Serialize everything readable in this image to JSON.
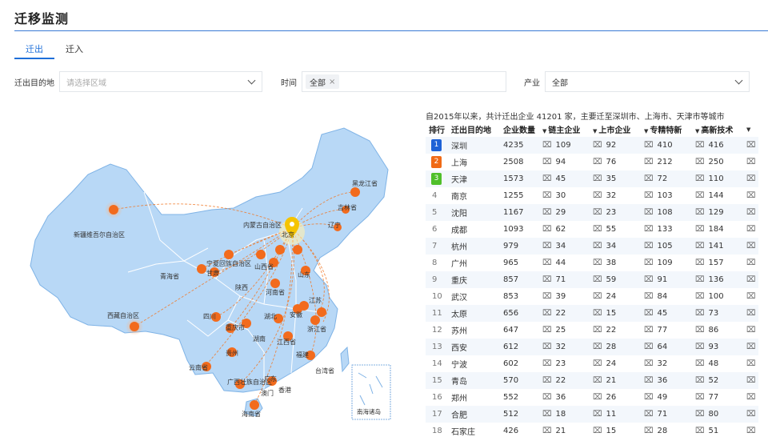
{
  "page_title": "迁移监测",
  "tabs": [
    {
      "label": "迁出"
    },
    {
      "label": "迁入"
    }
  ],
  "filters": {
    "destination_label": "迁出目的地",
    "destination_placeholder": "请选择区域",
    "time_label": "时间",
    "time_value": "全部",
    "industry_label": "产业",
    "industry_value": "全部"
  },
  "map": {
    "origin_label": "北京",
    "region_labels": [
      "黑龙江省",
      "吉林省",
      "辽宁",
      "内蒙古自治区",
      "新疆维吾尔自治区",
      "宁夏回族自治区",
      "甘肃",
      "青海省",
      "西藏自治区",
      "陕西",
      "山西省",
      "河南省",
      "山东",
      "江苏",
      "安徽",
      "湖北",
      "四川",
      "重庆市",
      "浙江省",
      "湖南",
      "江西省",
      "贵州",
      "福建",
      "云南省",
      "广西壮族自治区",
      "广东",
      "澳门",
      "香港",
      "台湾省",
      "海南省",
      "南海诸岛"
    ],
    "colors": {
      "land": "#b8d8f6",
      "border": "#ffffff",
      "outline": "#7fb3e6",
      "flow": "#f07a2a",
      "point": "#f26b1d",
      "pin": "#f5c400"
    }
  },
  "summary": "自2015年以来，共计迁出企业 41201 家，主要迁至深圳市、上海市、天津市等城市",
  "table": {
    "headers": [
      "排行",
      "迁出目的地",
      "企业数量",
      "链主企业",
      "上市企业",
      "专精特新",
      "高新技术"
    ],
    "sort_indicator": "▼",
    "count_icon": "company-count-icon",
    "rank_colors": [
      "#1e62d6",
      "#f06a16",
      "#4fbf2a"
    ],
    "rows": [
      {
        "rank": "1",
        "city": "深圳",
        "count": "4235",
        "chain": "109",
        "listed": "92",
        "special": "410",
        "hightech": "416"
      },
      {
        "rank": "2",
        "city": "上海",
        "count": "2508",
        "chain": "94",
        "listed": "76",
        "special": "212",
        "hightech": "250"
      },
      {
        "rank": "3",
        "city": "天津",
        "count": "1573",
        "chain": "45",
        "listed": "35",
        "special": "72",
        "hightech": "110"
      },
      {
        "rank": "4",
        "city": "南京",
        "count": "1255",
        "chain": "30",
        "listed": "32",
        "special": "103",
        "hightech": "144"
      },
      {
        "rank": "5",
        "city": "沈阳",
        "count": "1167",
        "chain": "29",
        "listed": "23",
        "special": "108",
        "hightech": "129"
      },
      {
        "rank": "6",
        "city": "成都",
        "count": "1093",
        "chain": "62",
        "listed": "55",
        "special": "133",
        "hightech": "184"
      },
      {
        "rank": "7",
        "city": "杭州",
        "count": "979",
        "chain": "34",
        "listed": "34",
        "special": "105",
        "hightech": "141"
      },
      {
        "rank": "8",
        "city": "广州",
        "count": "965",
        "chain": "44",
        "listed": "38",
        "special": "109",
        "hightech": "157"
      },
      {
        "rank": "9",
        "city": "重庆",
        "count": "857",
        "chain": "71",
        "listed": "59",
        "special": "91",
        "hightech": "136"
      },
      {
        "rank": "10",
        "city": "武汉",
        "count": "853",
        "chain": "39",
        "listed": "24",
        "special": "84",
        "hightech": "100"
      },
      {
        "rank": "11",
        "city": "太原",
        "count": "656",
        "chain": "22",
        "listed": "15",
        "special": "45",
        "hightech": "73"
      },
      {
        "rank": "12",
        "city": "苏州",
        "count": "647",
        "chain": "25",
        "listed": "22",
        "special": "77",
        "hightech": "86"
      },
      {
        "rank": "13",
        "city": "西安",
        "count": "612",
        "chain": "32",
        "listed": "28",
        "special": "64",
        "hightech": "93"
      },
      {
        "rank": "14",
        "city": "宁波",
        "count": "602",
        "chain": "23",
        "listed": "24",
        "special": "32",
        "hightech": "48"
      },
      {
        "rank": "15",
        "city": "青岛",
        "count": "570",
        "chain": "22",
        "listed": "21",
        "special": "36",
        "hightech": "52"
      },
      {
        "rank": "16",
        "city": "郑州",
        "count": "552",
        "chain": "36",
        "listed": "26",
        "special": "49",
        "hightech": "77"
      },
      {
        "rank": "17",
        "city": "合肥",
        "count": "512",
        "chain": "18",
        "listed": "11",
        "special": "71",
        "hightech": "80"
      },
      {
        "rank": "18",
        "city": "石家庄",
        "count": "426",
        "chain": "21",
        "listed": "15",
        "special": "28",
        "hightech": "51"
      }
    ]
  }
}
